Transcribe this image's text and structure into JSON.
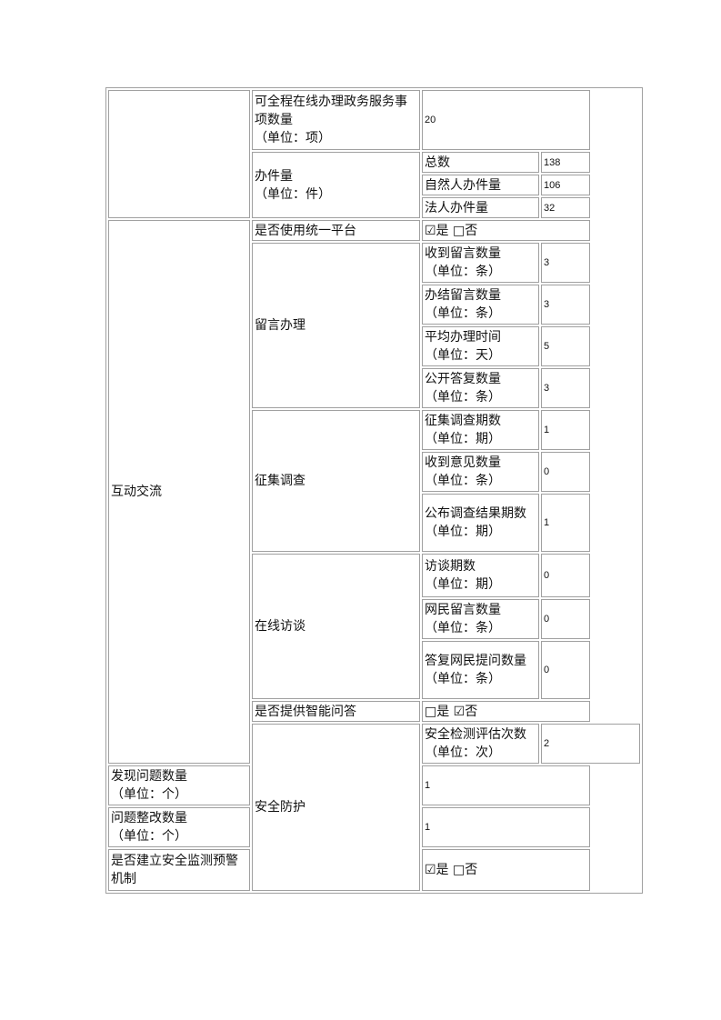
{
  "rows": {
    "online_items": {
      "label": "可全程在线办理政务服务事项数量",
      "unit": "（单位：项）",
      "value": "20"
    },
    "cases": {
      "label": "办件量",
      "unit": "（单位：件）",
      "total_label": "总数",
      "total": "138",
      "natural_label": "自然人办件量",
      "natural": "106",
      "legal_label": "法人办件量",
      "legal": "32"
    },
    "interaction": {
      "section": "互动交流",
      "platform": {
        "label": "是否使用统一平台",
        "value": "☑是 □否"
      },
      "messages": {
        "label": "留言办理",
        "received": {
          "label": "收到留言数量",
          "unit": "（单位：条）",
          "value": "3"
        },
        "closed": {
          "label": "办结留言数量",
          "unit": "（单位：条）",
          "value": "3"
        },
        "avg_time": {
          "label": "平均办理时间",
          "unit": "（单位：天）",
          "value": "5"
        },
        "public_reply": {
          "label": "公开答复数量",
          "unit": "（单位：条）",
          "value": "3"
        }
      },
      "survey": {
        "label": "征集调查",
        "periods": {
          "label": "征集调查期数",
          "unit": "（单位：期）",
          "value": "1"
        },
        "opinions": {
          "label": "收到意见数量",
          "unit": "（单位：条）",
          "value": "0"
        },
        "results": {
          "label": "公布调查结果期数",
          "unit": "（单位：期）",
          "value": "1"
        }
      },
      "interview": {
        "label": "在线访谈",
        "periods": {
          "label": "访谈期数",
          "unit": "（单位：期）",
          "value": "0"
        },
        "messages": {
          "label": "网民留言数量",
          "unit": "（单位：条）",
          "value": "0"
        },
        "answers": {
          "label": "答复网民提问数量",
          "unit": "（单位：条）",
          "value": "0"
        }
      },
      "smart_qa": {
        "label": "是否提供智能问答",
        "value": "□是 ☑否"
      }
    },
    "security": {
      "section": "安全防护",
      "checks": {
        "label": "安全检测评估次数",
        "unit": "（单位：次）",
        "value": "2"
      },
      "found": {
        "label": "发现问题数量",
        "unit": "（单位：个）",
        "value": "1"
      },
      "fixed": {
        "label": "问题整改数量",
        "unit": "（单位：个）",
        "value": "1"
      },
      "warning": {
        "label": "是否建立安全监测预警机制",
        "value": "☑是 □否"
      }
    }
  }
}
